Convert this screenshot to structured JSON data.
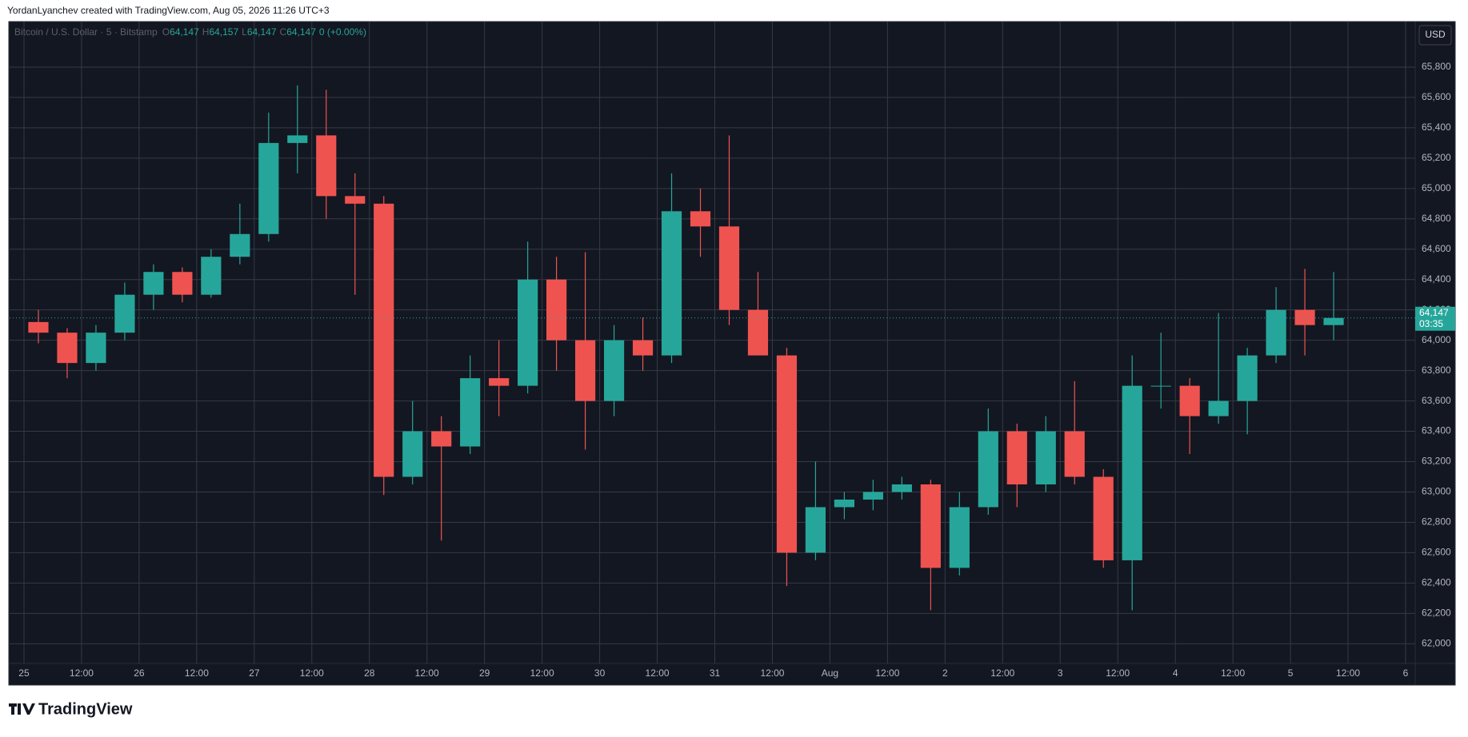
{
  "attribution": "YordanLyanchev created with TradingView.com, Aug 05, 2026 11:26 UTC+3",
  "brand": "TradingView",
  "chart_data": {
    "type": "candlestick",
    "title": "Bitcoin / U.S. Dollar · 5 · Bitstamp",
    "ohlc_legend": [
      {
        "label": "O",
        "value": "64,147"
      },
      {
        "label": "H",
        "value": "64,157"
      },
      {
        "label": "L",
        "value": "64,147"
      },
      {
        "label": "C",
        "value": "64,147"
      }
    ],
    "change": "0 (+0.00%)",
    "currency": "USD",
    "last_price": {
      "value": 64147,
      "label": "64,147"
    },
    "countdown": "03:35",
    "up_color": "#26a69a",
    "down_color": "#ef5350",
    "grid": true,
    "x": [
      0,
      6,
      12,
      18,
      24,
      30,
      36,
      42,
      48,
      54,
      60,
      66,
      72,
      78,
      84,
      90,
      96,
      102,
      108,
      114,
      120,
      126,
      132,
      138,
      144,
      150,
      156,
      162,
      168,
      174,
      180,
      186,
      192,
      198,
      204,
      210,
      216,
      222,
      228,
      234,
      240,
      246,
      252,
      258,
      264,
      270
    ],
    "open": [
      64120,
      64050,
      63850,
      64050,
      64300,
      64450,
      64300,
      64550,
      64700,
      65300,
      65350,
      64950,
      64900,
      63100,
      63400,
      63300,
      63750,
      63700,
      64400,
      64000,
      63600,
      64000,
      63900,
      64850,
      64750,
      64200,
      63900,
      62600,
      62900,
      62950,
      63000,
      63050,
      62500,
      62900,
      63400,
      63050,
      63400,
      63100,
      62550,
      63700,
      63700,
      63500,
      63600,
      63900,
      64200,
      64100
    ],
    "high": [
      64200,
      64080,
      64100,
      64380,
      64500,
      64480,
      64600,
      64900,
      65500,
      65680,
      65650,
      65100,
      64950,
      63600,
      63500,
      63900,
      64000,
      64650,
      64550,
      64580,
      64100,
      64150,
      65100,
      65000,
      65350,
      64450,
      63950,
      63200,
      63000,
      63080,
      63100,
      63080,
      63000,
      63550,
      63450,
      63500,
      63730,
      63150,
      63900,
      64050,
      63750,
      64180,
      63950,
      64350,
      64470,
      64450
    ],
    "low": [
      63980,
      63750,
      63800,
      64000,
      64200,
      64250,
      64280,
      64500,
      64650,
      65100,
      64800,
      64300,
      62980,
      63050,
      62680,
      63250,
      63500,
      63650,
      63800,
      63280,
      63500,
      63800,
      63850,
      64550,
      64100,
      63900,
      62380,
      62550,
      62820,
      62880,
      62950,
      62220,
      62450,
      62850,
      62900,
      63000,
      63050,
      62500,
      62220,
      63550,
      63250,
      63450,
      63380,
      63850,
      63900,
      64000
    ],
    "close": [
      64050,
      63850,
      64050,
      64300,
      64450,
      64300,
      64550,
      64700,
      65300,
      65350,
      64950,
      64900,
      63100,
      63400,
      63300,
      63750,
      63700,
      64400,
      64000,
      63600,
      64000,
      63900,
      64850,
      64750,
      64200,
      63900,
      62600,
      62900,
      62950,
      63000,
      63050,
      62500,
      62900,
      63400,
      63050,
      63400,
      63100,
      62550,
      63700,
      63700,
      63500,
      63600,
      63900,
      64200,
      64100,
      64147
    ],
    "xlim": [
      -3,
      290
    ],
    "xticks": [
      {
        "value": 0,
        "label": "25"
      },
      {
        "value": 12,
        "label": "12:00"
      },
      {
        "value": 24,
        "label": "26"
      },
      {
        "value": 36,
        "label": "12:00"
      },
      {
        "value": 48,
        "label": "27"
      },
      {
        "value": 60,
        "label": "12:00"
      },
      {
        "value": 72,
        "label": "28"
      },
      {
        "value": 84,
        "label": "12:00"
      },
      {
        "value": 96,
        "label": "29"
      },
      {
        "value": 108,
        "label": "12:00"
      },
      {
        "value": 120,
        "label": "30"
      },
      {
        "value": 132,
        "label": "12:00"
      },
      {
        "value": 144,
        "label": "31"
      },
      {
        "value": 156,
        "label": "12:00"
      },
      {
        "value": 168,
        "label": "Aug"
      },
      {
        "value": 180,
        "label": "12:00"
      },
      {
        "value": 192,
        "label": "2"
      },
      {
        "value": 204,
        "label": "12:00"
      },
      {
        "value": 216,
        "label": "3"
      },
      {
        "value": 228,
        "label": "12:00"
      },
      {
        "value": 240,
        "label": "4"
      },
      {
        "value": 252,
        "label": "12:00"
      },
      {
        "value": 264,
        "label": "5"
      },
      {
        "value": 276,
        "label": "12:00"
      },
      {
        "value": 288,
        "label": "6"
      }
    ],
    "ylim": [
      61870,
      66100
    ],
    "yticks": [
      {
        "value": 62000,
        "label": "62,000"
      },
      {
        "value": 62200,
        "label": "62,200"
      },
      {
        "value": 62400,
        "label": "62,400"
      },
      {
        "value": 62600,
        "label": "62,600"
      },
      {
        "value": 62800,
        "label": "62,800"
      },
      {
        "value": 63000,
        "label": "63,000"
      },
      {
        "value": 63200,
        "label": "63,200"
      },
      {
        "value": 63400,
        "label": "63,400"
      },
      {
        "value": 63600,
        "label": "63,600"
      },
      {
        "value": 63800,
        "label": "63,800"
      },
      {
        "value": 64000,
        "label": "64,000"
      },
      {
        "value": 64200,
        "label": "64,200"
      },
      {
        "value": 64400,
        "label": "64,400"
      },
      {
        "value": 64600,
        "label": "64,600"
      },
      {
        "value": 64800,
        "label": "64,800"
      },
      {
        "value": 65000,
        "label": "65,000"
      },
      {
        "value": 65200,
        "label": "65,200"
      },
      {
        "value": 65400,
        "label": "65,400"
      },
      {
        "value": 65600,
        "label": "65,600"
      },
      {
        "value": 65800,
        "label": "65,800"
      }
    ]
  }
}
